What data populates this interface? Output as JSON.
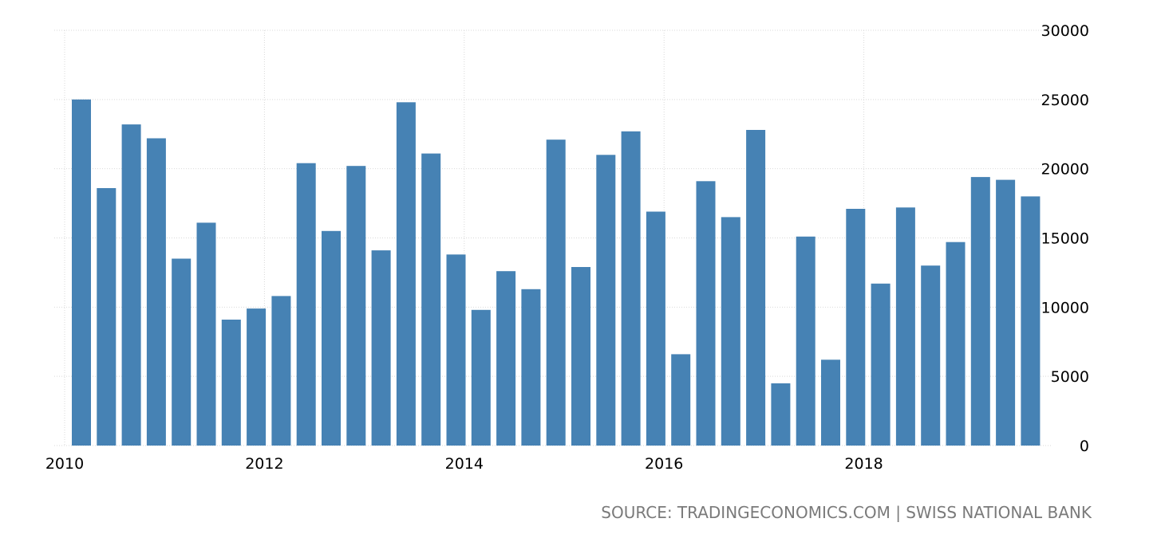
{
  "chart_data": {
    "type": "bar",
    "x_ticks": [
      "2010",
      "2012",
      "2014",
      "2016",
      "2018"
    ],
    "ylim": [
      0,
      30000
    ],
    "y_ticks": [
      "0",
      "5000",
      "10000",
      "15000",
      "20000",
      "25000",
      "30000"
    ],
    "grid": true,
    "series": [
      {
        "values": [
          25000,
          18600,
          23200,
          22200,
          13500,
          16100,
          9100,
          9900,
          10800,
          20400,
          15500,
          20200,
          14100,
          24800,
          21100,
          13800,
          9800,
          12600,
          11300,
          22100,
          12900,
          21000,
          22700,
          16900,
          6600,
          19100,
          16500,
          22800,
          4500,
          15100,
          6200,
          17100,
          11700,
          17200,
          13000,
          14700,
          19400,
          19200,
          18000
        ]
      }
    ]
  },
  "colors": {
    "bar": "#4682b4",
    "grid": "#d9d9d9",
    "source": "#7a7a7a"
  },
  "source": "SOURCE: TRADINGECONOMICS.COM | SWISS NATIONAL BANK"
}
